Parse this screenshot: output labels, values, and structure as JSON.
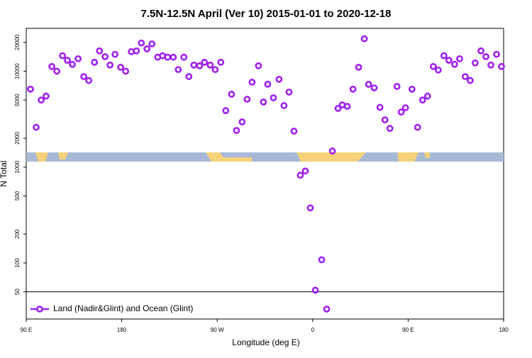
{
  "chart_data": {
    "type": "scatter",
    "title": "7.5N-12.5N April (Ver 10)   2015-01-01 to 2020-12-18",
    "x_label": "Longitude (deg E)",
    "y_label": "N Total",
    "yscale": "log",
    "legend_position": "lower left",
    "grid": false,
    "xlim": [
      90,
      540
    ],
    "xticks": [
      {
        "value": 90,
        "label": "90 E"
      },
      {
        "value": 180,
        "label": "180"
      },
      {
        "value": 270,
        "label": "90 W"
      },
      {
        "value": 360,
        "label": "0"
      },
      {
        "value": 450,
        "label": "90 E"
      },
      {
        "value": 540,
        "label": "180"
      }
    ],
    "ylim": [
      26,
      28000
    ],
    "yticks": [
      50,
      100,
      200,
      500,
      1000,
      2000,
      5000,
      10000,
      20000
    ],
    "reference_line": 50,
    "series": [
      {
        "name": "Land (Nadir&Glint) and Ocean (Glint)",
        "color": "#a020f0",
        "x": [
          94.0,
          99.4,
          104.1,
          108.7,
          114.1,
          118.8,
          124.2,
          128.8,
          133.5,
          138.9,
          144.2,
          148.9,
          154.3,
          159.0,
          164.3,
          169.0,
          173.7,
          179.0,
          183.7,
          189.1,
          193.8,
          198.5,
          203.8,
          208.5,
          213.9,
          218.5,
          223.2,
          228.6,
          233.3,
          238.6,
          243.3,
          248.0,
          253.4,
          258.0,
          263.4,
          268.1,
          273.4,
          278.1,
          283.5,
          288.2,
          293.5,
          298.2,
          302.9,
          308.9,
          313.6,
          317.6,
          323.0,
          328.3,
          333.0,
          337.7,
          342.4,
          348.4,
          353.1,
          357.8,
          362.5,
          368.5,
          373.2,
          378.6,
          383.9,
          387.9,
          392.6,
          398.0,
          403.3,
          408.7,
          412.7,
          418.0,
          423.4,
          428.1,
          432.8,
          439.5,
          443.5,
          447.5,
          453.6,
          458.9,
          463.6,
          468.3,
          473.7,
          478.4,
          483.7,
          488.4,
          493.8,
          498.5,
          503.8,
          508.5,
          513.2,
          518.6,
          523.3,
          528.0,
          533.3,
          538.0
        ],
        "values": [
          6500,
          2600,
          5000,
          5500,
          11200,
          10000,
          14500,
          13000,
          11800,
          13500,
          8800,
          8000,
          12400,
          16300,
          14200,
          11600,
          15000,
          11000,
          10000,
          16000,
          16300,
          19700,
          17100,
          19300,
          14000,
          14500,
          14000,
          14000,
          10400,
          14000,
          8800,
          11600,
          11400,
          12400,
          11600,
          10400,
          12400,
          3880,
          5750,
          2410,
          2960,
          5100,
          7690,
          11400,
          4770,
          7310,
          5280,
          8230,
          4380,
          6050,
          2370,
          822,
          910,
          375,
          52,
          108,
          33,
          1470,
          4090,
          4450,
          4300,
          6500,
          11000,
          21800,
          7300,
          6700,
          4200,
          3110,
          2530,
          6940,
          3750,
          4160,
          6500,
          2600,
          5000,
          5500,
          11200,
          10300,
          14500,
          13000,
          11800,
          13500,
          8800,
          8000,
          12200,
          16300,
          14200,
          11600,
          15000,
          11200
        ]
      }
    ]
  }
}
